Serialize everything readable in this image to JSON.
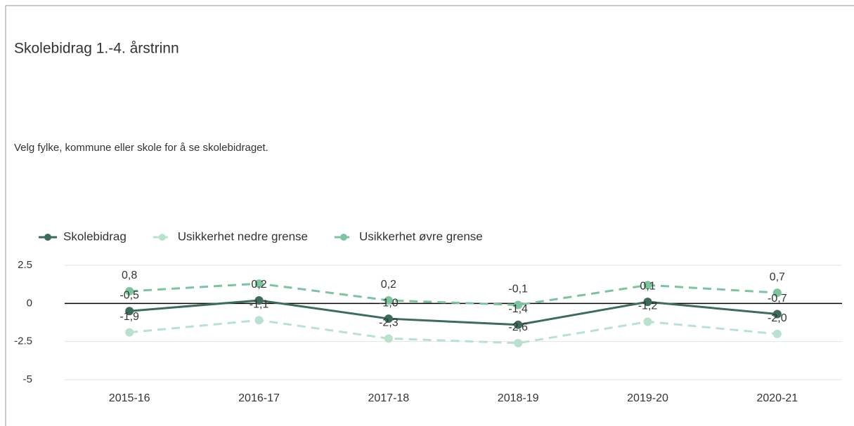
{
  "chart_data": {
    "type": "line",
    "title": "Skolebidrag 1.-4. årstrinn",
    "subtitle": "Velg fylke, kommune eller skole for å se skolebidraget.",
    "categories": [
      "2015-16",
      "2016-17",
      "2017-18",
      "2018-19",
      "2019-20",
      "2020-21"
    ],
    "series": [
      {
        "name": "Skolebidrag",
        "color": "#3d6b5c",
        "line_style": "solid",
        "values": [
          -0.5,
          0.2,
          -1.0,
          -1.4,
          0.1,
          -0.7
        ],
        "value_labels": [
          "-0,5",
          "0,2",
          "-1,0",
          "-1,4",
          "0,1",
          "-0,7"
        ]
      },
      {
        "name": "Usikkerhet nedre grense",
        "color": "#b8e2ce",
        "line_style": "dashed",
        "values": [
          -1.9,
          -1.1,
          -2.3,
          -2.6,
          -1.2,
          -2.0
        ],
        "value_labels": [
          "-1,9",
          "-1,1",
          "-2,3",
          "-2,6",
          "-1,2",
          "-2,0"
        ]
      },
      {
        "name": "Usikkerhet øvre grense",
        "color": "#7cc49d",
        "line_style": "dashed",
        "values": [
          0.8,
          1.3,
          0.2,
          -0.1,
          1.2,
          0.7
        ],
        "value_labels": [
          "0,8",
          null,
          "0,2",
          "-0,1",
          null,
          "0,7"
        ]
      }
    ],
    "ylim": [
      -5,
      2.5
    ],
    "yticks": [
      -5,
      -2.5,
      0,
      2.5
    ],
    "grid": true,
    "legend": "top-left"
  }
}
